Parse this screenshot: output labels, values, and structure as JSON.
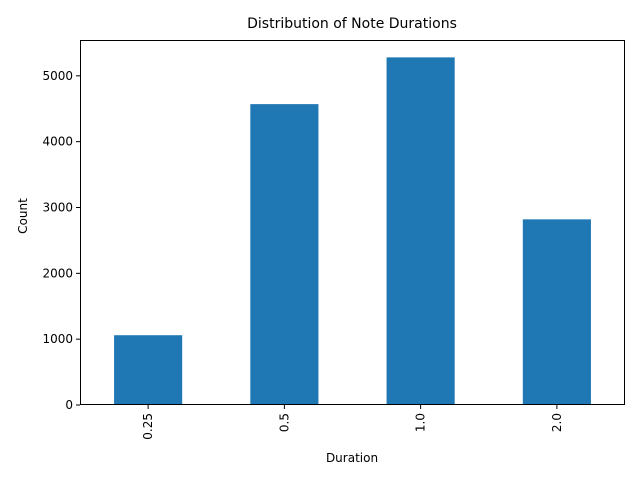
{
  "chart_data": {
    "type": "bar",
    "title": "Distribution of Note Durations",
    "xlabel": "Duration",
    "ylabel": "Count",
    "categories": [
      "0.25",
      "0.5",
      "1.0",
      "2.0"
    ],
    "values": [
      1060,
      4570,
      5280,
      2820
    ],
    "ylim": [
      0,
      5544
    ],
    "yticks": [
      "0",
      "1000",
      "2000",
      "3000",
      "4000",
      "5000"
    ],
    "grid": false,
    "legend": "none",
    "x_tick_rotation": "vertical",
    "bar_color": "#1f77b4"
  }
}
